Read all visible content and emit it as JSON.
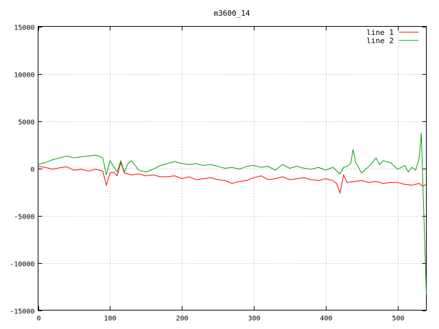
{
  "chart_data": {
    "type": "line",
    "title": "m3600_14",
    "xlabel": "",
    "ylabel": "",
    "xlim": [
      0,
      540
    ],
    "ylim": [
      -15000,
      15000
    ],
    "xticks": [
      0,
      100,
      200,
      300,
      400,
      500
    ],
    "yticks": [
      -15000,
      -10000,
      -5000,
      0,
      5000,
      10000,
      15000
    ],
    "grid": true,
    "legend_position": "top-right",
    "series": [
      {
        "name": "line 1",
        "color": "#ff0000",
        "points": [
          [
            0,
            200
          ],
          [
            10,
            100
          ],
          [
            20,
            -100
          ],
          [
            30,
            50
          ],
          [
            40,
            150
          ],
          [
            50,
            -200
          ],
          [
            60,
            -100
          ],
          [
            70,
            -300
          ],
          [
            80,
            -100
          ],
          [
            90,
            -300
          ],
          [
            95,
            -1800
          ],
          [
            100,
            -500
          ],
          [
            105,
            -400
          ],
          [
            110,
            -800
          ],
          [
            115,
            600
          ],
          [
            120,
            -500
          ],
          [
            130,
            -700
          ],
          [
            140,
            -600
          ],
          [
            150,
            -800
          ],
          [
            160,
            -700
          ],
          [
            170,
            -900
          ],
          [
            180,
            -900
          ],
          [
            190,
            -800
          ],
          [
            200,
            -1100
          ],
          [
            210,
            -900
          ],
          [
            220,
            -1200
          ],
          [
            230,
            -1100
          ],
          [
            240,
            -1000
          ],
          [
            250,
            -1200
          ],
          [
            260,
            -1300
          ],
          [
            270,
            -1600
          ],
          [
            280,
            -1400
          ],
          [
            290,
            -1300
          ],
          [
            300,
            -1000
          ],
          [
            310,
            -800
          ],
          [
            320,
            -1200
          ],
          [
            330,
            -1100
          ],
          [
            340,
            -900
          ],
          [
            350,
            -1200
          ],
          [
            360,
            -1100
          ],
          [
            370,
            -1000
          ],
          [
            380,
            -1200
          ],
          [
            390,
            -1300
          ],
          [
            400,
            -1100
          ],
          [
            410,
            -1300
          ],
          [
            415,
            -1600
          ],
          [
            420,
            -2600
          ],
          [
            425,
            -700
          ],
          [
            430,
            -1500
          ],
          [
            440,
            -1400
          ],
          [
            450,
            -1300
          ],
          [
            460,
            -1500
          ],
          [
            470,
            -1400
          ],
          [
            480,
            -1600
          ],
          [
            490,
            -1500
          ],
          [
            500,
            -1500
          ],
          [
            510,
            -1700
          ],
          [
            520,
            -1800
          ],
          [
            530,
            -1600
          ],
          [
            535,
            -1900
          ],
          [
            540,
            -1700
          ]
        ]
      },
      {
        "name": "line 2",
        "color": "#00a000",
        "points": [
          [
            0,
            400
          ],
          [
            10,
            600
          ],
          [
            20,
            900
          ],
          [
            30,
            1100
          ],
          [
            40,
            1300
          ],
          [
            50,
            1100
          ],
          [
            60,
            1200
          ],
          [
            70,
            1300
          ],
          [
            80,
            1400
          ],
          [
            90,
            1100
          ],
          [
            95,
            -700
          ],
          [
            100,
            800
          ],
          [
            105,
            200
          ],
          [
            110,
            -400
          ],
          [
            115,
            800
          ],
          [
            120,
            -400
          ],
          [
            125,
            500
          ],
          [
            130,
            800
          ],
          [
            140,
            -200
          ],
          [
            150,
            -400
          ],
          [
            160,
            -100
          ],
          [
            170,
            300
          ],
          [
            180,
            500
          ],
          [
            190,
            700
          ],
          [
            200,
            500
          ],
          [
            210,
            400
          ],
          [
            220,
            500
          ],
          [
            230,
            300
          ],
          [
            240,
            400
          ],
          [
            250,
            200
          ],
          [
            260,
            0
          ],
          [
            270,
            100
          ],
          [
            280,
            -100
          ],
          [
            290,
            200
          ],
          [
            300,
            300
          ],
          [
            310,
            100
          ],
          [
            320,
            200
          ],
          [
            330,
            -200
          ],
          [
            340,
            400
          ],
          [
            350,
            0
          ],
          [
            360,
            200
          ],
          [
            370,
            0
          ],
          [
            380,
            -100
          ],
          [
            390,
            100
          ],
          [
            400,
            -200
          ],
          [
            410,
            100
          ],
          [
            420,
            -600
          ],
          [
            425,
            100
          ],
          [
            430,
            200
          ],
          [
            435,
            500
          ],
          [
            438,
            2000
          ],
          [
            442,
            600
          ],
          [
            450,
            -500
          ],
          [
            460,
            200
          ],
          [
            465,
            600
          ],
          [
            470,
            1100
          ],
          [
            475,
            400
          ],
          [
            480,
            800
          ],
          [
            490,
            600
          ],
          [
            500,
            -100
          ],
          [
            510,
            300
          ],
          [
            515,
            -400
          ],
          [
            520,
            100
          ],
          [
            525,
            -200
          ],
          [
            530,
            1000
          ],
          [
            533,
            3700
          ],
          [
            537,
            -6000
          ],
          [
            540,
            -13300
          ]
        ]
      }
    ]
  }
}
